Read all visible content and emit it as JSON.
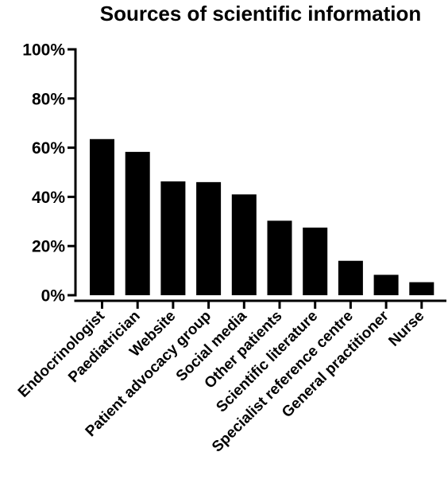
{
  "chart_data": {
    "type": "bar",
    "title": "Sources of scientific information",
    "xlabel": "",
    "ylabel": "",
    "categories": [
      "Endocrinologist",
      "Paediatrician",
      "Website",
      "Patient advocacy group",
      "Social media",
      "Other patients",
      "Scientific literature",
      "Specialist reference centre",
      "General practitioner",
      "Nurse"
    ],
    "values": [
      63.5,
      58.3,
      46.3,
      46.0,
      41.0,
      30.3,
      27.5,
      14.0,
      8.3,
      5.3
    ],
    "ylim": [
      0,
      100
    ],
    "yticks": [
      0,
      20,
      40,
      60,
      80,
      100
    ],
    "ytick_labels": [
      "0%",
      "20%",
      "40%",
      "60%",
      "80%",
      "100%"
    ],
    "grid": false,
    "bar_color": "#000000"
  }
}
